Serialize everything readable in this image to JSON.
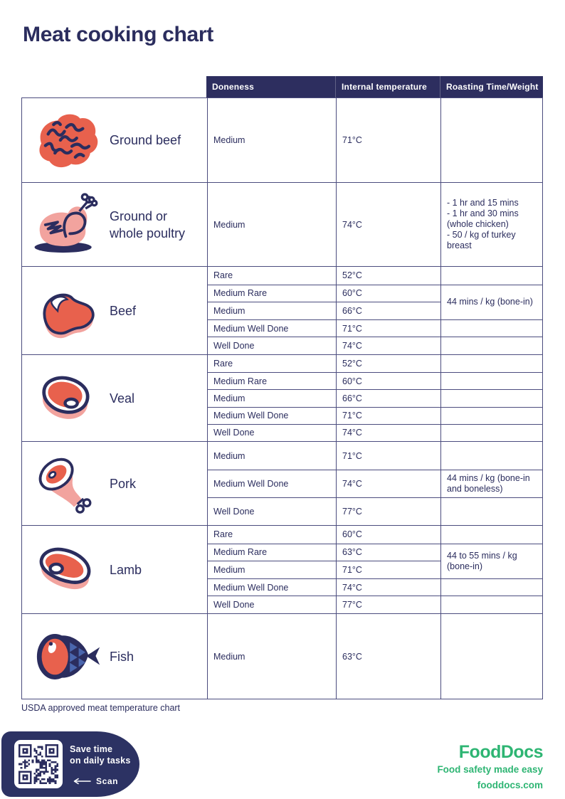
{
  "page": {
    "title": "Meat cooking chart",
    "caption": "USDA approved meat temperature chart"
  },
  "colors": {
    "navy": "#2b2d5e",
    "header_bg": "#2d2e5f",
    "coral": "#e8614d",
    "pink": "#f2a39e",
    "border": "#4b4c7e",
    "brand_green": "#2eb573",
    "scale_blue": "#4a66ad"
  },
  "table": {
    "headers": {
      "doneness": "Doneness",
      "temperature": "Internal temperature",
      "roasting": "Roasting Time/Weight"
    },
    "sections": [
      {
        "name": "Ground beef",
        "rows": [
          {
            "doneness": "Medium",
            "temp": "71°C"
          }
        ],
        "roast": [
          {
            "text": ""
          }
        ]
      },
      {
        "name": "Ground or whole poultry",
        "rows": [
          {
            "doneness": "Medium",
            "temp": "74°C"
          }
        ],
        "roast": [
          {
            "text": "- 1 hr and 15 mins\n- 1 hr and 30 mins (whole chicken)\n- 50 / kg of turkey breast"
          }
        ]
      },
      {
        "name": "Beef",
        "rows": [
          {
            "doneness": "Rare",
            "temp": "52°C"
          },
          {
            "doneness": "Medium Rare",
            "temp": "60°C"
          },
          {
            "doneness": "Medium",
            "temp": "66°C"
          },
          {
            "doneness": "Medium Well Done",
            "temp": "71°C"
          },
          {
            "doneness": "Well Done",
            "temp": "74°C"
          }
        ],
        "roast": [
          {
            "text": ""
          },
          {
            "text": "44 mins / kg (bone-in)"
          },
          {
            "text": ""
          },
          {
            "text": ""
          }
        ]
      },
      {
        "name": "Veal",
        "rows": [
          {
            "doneness": "Rare",
            "temp": "52°C"
          },
          {
            "doneness": "Medium Rare",
            "temp": "60°C"
          },
          {
            "doneness": "Medium",
            "temp": "66°C"
          },
          {
            "doneness": "Medium Well Done",
            "temp": "71°C"
          },
          {
            "doneness": "Well Done",
            "temp": "74°C"
          }
        ],
        "roast": [
          {
            "text": ""
          },
          {
            "text": ""
          },
          {
            "text": ""
          },
          {
            "text": ""
          },
          {
            "text": ""
          }
        ]
      },
      {
        "name": "Pork",
        "rows": [
          {
            "doneness": "Medium",
            "temp": "71°C"
          },
          {
            "doneness": "Medium Well Done",
            "temp": "74°C"
          },
          {
            "doneness": "Well Done",
            "temp": "77°C"
          }
        ],
        "roast": [
          {
            "text": ""
          },
          {
            "text": "44 mins / kg (bone-in and boneless)"
          },
          {
            "text": ""
          }
        ]
      },
      {
        "name": "Lamb",
        "rows": [
          {
            "doneness": "Rare",
            "temp": "60°C"
          },
          {
            "doneness": "Medium Rare",
            "temp": "63°C"
          },
          {
            "doneness": "Medium",
            "temp": "71°C"
          },
          {
            "doneness": "Medium Well Done",
            "temp": "74°C"
          },
          {
            "doneness": "Well Done",
            "temp": "77°C"
          }
        ],
        "roast": [
          {
            "text": ""
          },
          {
            "text": "44 to 55 mins / kg (bone-in)"
          },
          {
            "text": ""
          },
          {
            "text": ""
          }
        ]
      },
      {
        "name": "Fish",
        "rows": [
          {
            "doneness": "Medium",
            "temp": "63°C"
          }
        ],
        "roast": [
          {
            "text": ""
          }
        ]
      }
    ]
  },
  "footer": {
    "save_line1": "Save time",
    "save_line2": "on daily tasks",
    "scan_label": "Scan",
    "brand": {
      "logo": "FoodDocs",
      "tagline": "Food safety made easy",
      "website": "fooddocs.com"
    }
  }
}
